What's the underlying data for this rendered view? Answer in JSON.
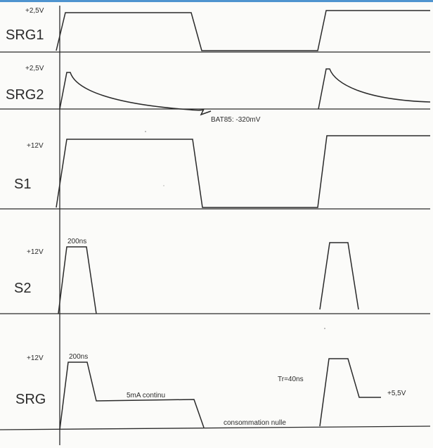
{
  "traces": [
    {
      "id": "srg1",
      "name": "SRG1",
      "level": "+2,5V"
    },
    {
      "id": "srg2",
      "name": "SRG2",
      "level": "+2,5V"
    },
    {
      "id": "s1",
      "name": "S1",
      "level": "+12V"
    },
    {
      "id": "s2",
      "name": "S2",
      "level": "+12V"
    },
    {
      "id": "srg",
      "name": "SRG",
      "level": "+12V"
    }
  ],
  "annotations": {
    "bat85": "BAT85: -320mV",
    "s2_width": "200ns",
    "srg_width": "200ns",
    "srg_continuous": "5mA continu",
    "srg_rise": "Tr=40ns",
    "srg_level_right": "+5,5V",
    "srg_zero": "consommation nulle"
  },
  "colors": {
    "ink": "#2a2a2a",
    "paper": "#fbfbf9",
    "top_strip": "#4f94cf"
  }
}
